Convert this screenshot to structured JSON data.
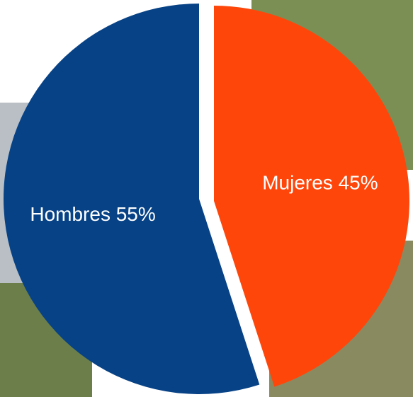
{
  "chart_data": {
    "type": "pie",
    "values": [
      45,
      55
    ],
    "value_labels": [
      "Mujeres 45%",
      "Hombres 55%"
    ],
    "colors": [
      "#ff460a",
      "#074286"
    ]
  }
}
